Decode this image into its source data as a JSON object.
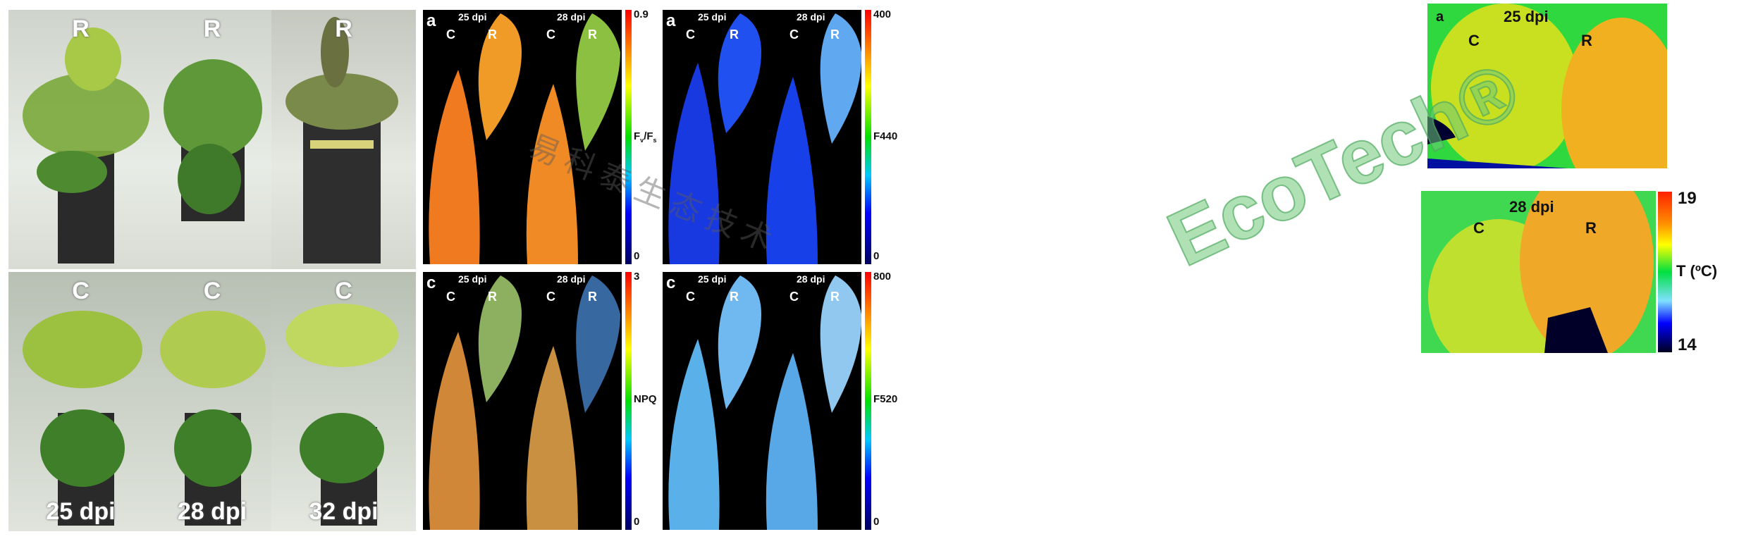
{
  "photos": {
    "top_row_label": "R",
    "bottom_row_label": "C",
    "columns": [
      "25 dpi",
      "28 dpi",
      "32 dpi"
    ]
  },
  "chlorophyll_panels": [
    {
      "letter": "a",
      "dates": [
        "25 dpi",
        "28 dpi"
      ],
      "leaf_labels": [
        "C",
        "R",
        "C",
        "R"
      ],
      "colorbar": {
        "max": "0.9",
        "min": "0",
        "label_main": "F",
        "label_sub1": "v",
        "label_sep": "/F",
        "label_sub2": "s"
      }
    },
    {
      "letter": "c",
      "dates": [
        "25 dpi",
        "28 dpi"
      ],
      "leaf_labels": [
        "C",
        "R",
        "C",
        "R"
      ],
      "colorbar": {
        "max": "3",
        "min": "0",
        "label": "NPQ"
      }
    }
  ],
  "fluorescence_panels": [
    {
      "letter": "a",
      "dates": [
        "25 dpi",
        "28 dpi"
      ],
      "leaf_labels": [
        "C",
        "R",
        "C",
        "R"
      ],
      "colorbar": {
        "max": "400",
        "min": "0",
        "label": "F440"
      }
    },
    {
      "letter": "c",
      "dates": [
        "25 dpi",
        "28 dpi"
      ],
      "leaf_labels": [
        "C",
        "R",
        "C",
        "R"
      ],
      "colorbar": {
        "max": "800",
        "min": "0",
        "label": "F520"
      }
    }
  ],
  "thermal_panels": [
    {
      "letter": "a",
      "date": "25 dpi",
      "leaf_labels": [
        "C",
        "R"
      ]
    },
    {
      "date": "28 dpi",
      "leaf_labels": [
        "C",
        "R"
      ],
      "colorbar": {
        "max": "19",
        "min": "14",
        "label": "T (ºC)"
      }
    }
  ],
  "watermark": {
    "text": "易科泰生态技术",
    "logo": "EcoTech®"
  },
  "colors": {
    "jet_scale": [
      "#000060",
      "#0000ff",
      "#00c8ff",
      "#00e000",
      "#ffff00",
      "#ff8000",
      "#ff0000"
    ],
    "thermal_scale": [
      "#000020",
      "#0000ff",
      "#80e0ff",
      "#00e040",
      "#ffff00",
      "#ff9000",
      "#ff2000"
    ]
  }
}
